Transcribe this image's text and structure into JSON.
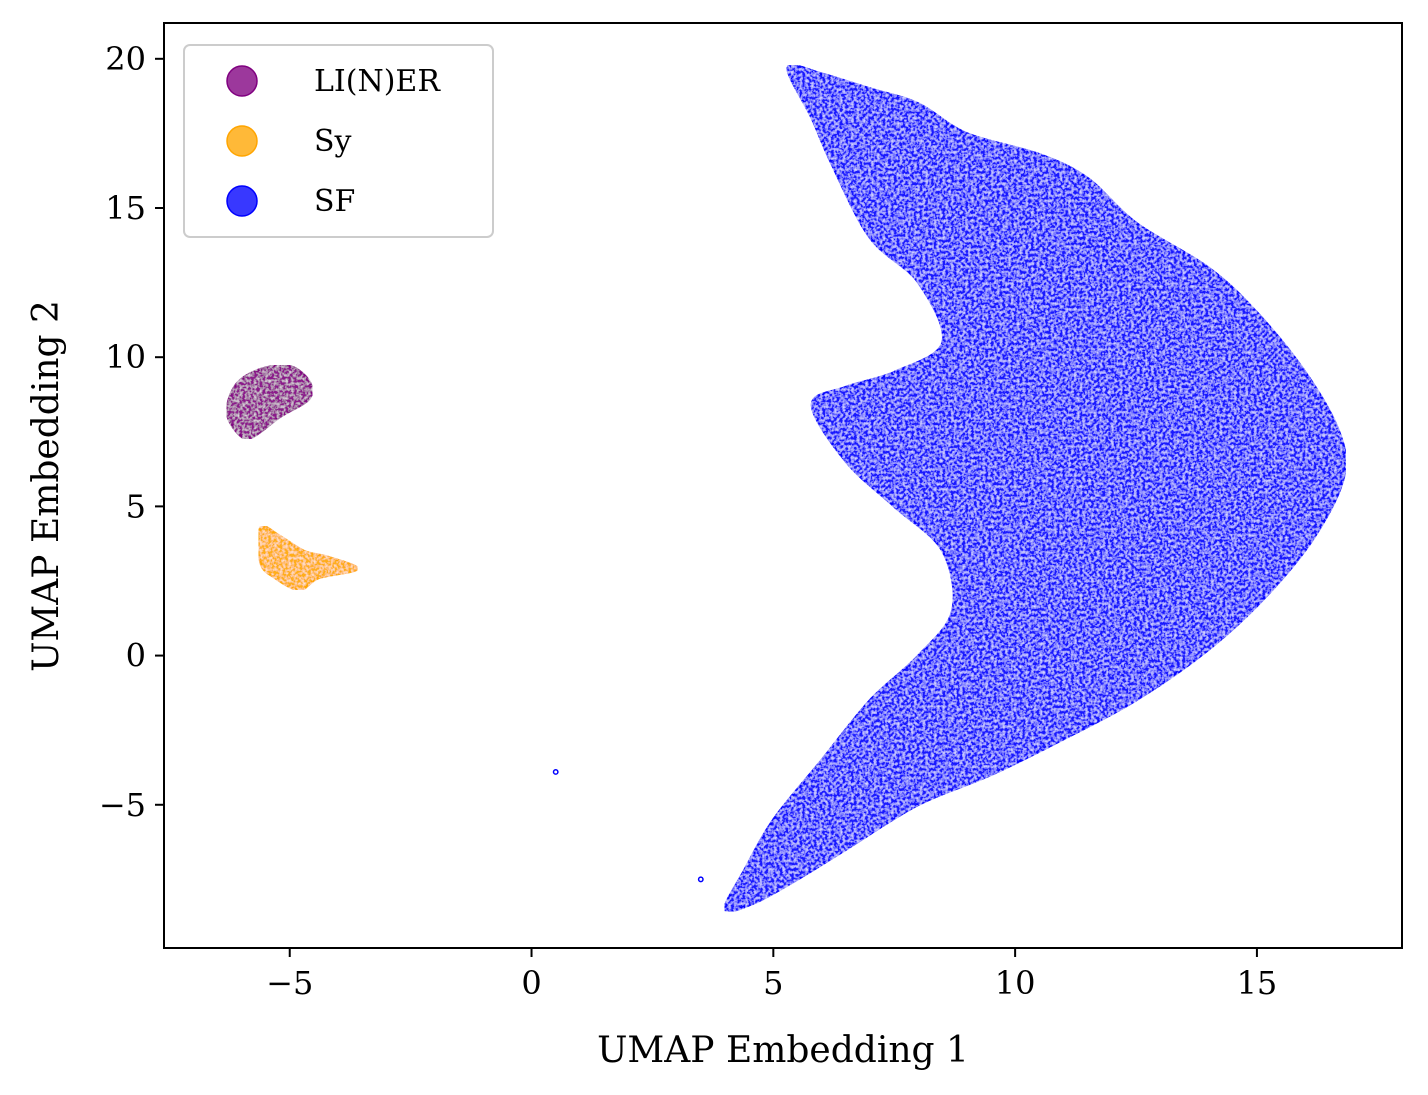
{
  "chart_data": {
    "type": "scatter",
    "title": "",
    "xlabel": "UMAP Embedding 1",
    "ylabel": "UMAP Embedding 2",
    "xlim": [
      -7.6,
      18.0
    ],
    "ylim": [
      -9.8,
      21.2
    ],
    "grid": false,
    "legend_position": "top-left",
    "x_ticks": [
      -5,
      0,
      5,
      10,
      15
    ],
    "x_tick_labels": [
      "−5",
      "0",
      "5",
      "10",
      "15"
    ],
    "y_ticks": [
      -5,
      0,
      5,
      10,
      15,
      20
    ],
    "y_tick_labels": [
      "−5",
      "0",
      "5",
      "10",
      "15",
      "20"
    ],
    "series": [
      {
        "name": "LI(N)ER",
        "color": "#800080",
        "region_outline": [
          [
            -6.3,
            8.2
          ],
          [
            -6.1,
            9.1
          ],
          [
            -5.6,
            9.6
          ],
          [
            -5.0,
            9.7
          ],
          [
            -4.6,
            9.2
          ],
          [
            -4.6,
            8.6
          ],
          [
            -5.2,
            8.0
          ],
          [
            -5.8,
            7.3
          ],
          [
            -6.1,
            7.5
          ]
        ]
      },
      {
        "name": "Sy",
        "color": "#FFA500",
        "region_outline": [
          [
            -5.6,
            4.3
          ],
          [
            -5.2,
            4.0
          ],
          [
            -4.7,
            3.5
          ],
          [
            -4.2,
            3.3
          ],
          [
            -3.6,
            2.9
          ],
          [
            -4.4,
            2.6
          ],
          [
            -4.8,
            2.2
          ],
          [
            -5.3,
            2.6
          ],
          [
            -5.6,
            3.1
          ]
        ]
      },
      {
        "name": "SF",
        "color": "#0000FF",
        "region_outline": [
          [
            5.3,
            19.7
          ],
          [
            6.0,
            19.5
          ],
          [
            7.0,
            19.0
          ],
          [
            8.0,
            18.5
          ],
          [
            9.0,
            17.5
          ],
          [
            10.5,
            16.8
          ],
          [
            11.5,
            16.0
          ],
          [
            12.5,
            14.5
          ],
          [
            14.0,
            13.0
          ],
          [
            15.0,
            11.5
          ],
          [
            16.0,
            9.5
          ],
          [
            16.7,
            7.5
          ],
          [
            16.8,
            6.0
          ],
          [
            16.2,
            4.0
          ],
          [
            15.2,
            2.0
          ],
          [
            14.0,
            0.2
          ],
          [
            12.5,
            -1.5
          ],
          [
            11.0,
            -2.8
          ],
          [
            9.5,
            -4.0
          ],
          [
            8.0,
            -5.0
          ],
          [
            6.5,
            -6.5
          ],
          [
            5.5,
            -7.5
          ],
          [
            4.6,
            -8.3
          ],
          [
            4.0,
            -8.5
          ],
          [
            4.4,
            -7.2
          ],
          [
            5.0,
            -5.5
          ],
          [
            6.0,
            -3.5
          ],
          [
            7.0,
            -1.5
          ],
          [
            8.0,
            0.0
          ],
          [
            8.7,
            1.5
          ],
          [
            8.5,
            3.5
          ],
          [
            7.5,
            5.0
          ],
          [
            6.5,
            6.5
          ],
          [
            5.8,
            8.4
          ],
          [
            6.5,
            9.0
          ],
          [
            7.5,
            9.5
          ],
          [
            8.5,
            10.5
          ],
          [
            8.0,
            12.5
          ],
          [
            7.0,
            14.0
          ],
          [
            6.2,
            16.5
          ],
          [
            5.8,
            18.0
          ]
        ]
      }
    ],
    "isolated_points": [
      {
        "series": "SF",
        "x": 0.5,
        "y": -3.9
      },
      {
        "series": "SF",
        "x": 3.5,
        "y": -7.5
      }
    ]
  }
}
